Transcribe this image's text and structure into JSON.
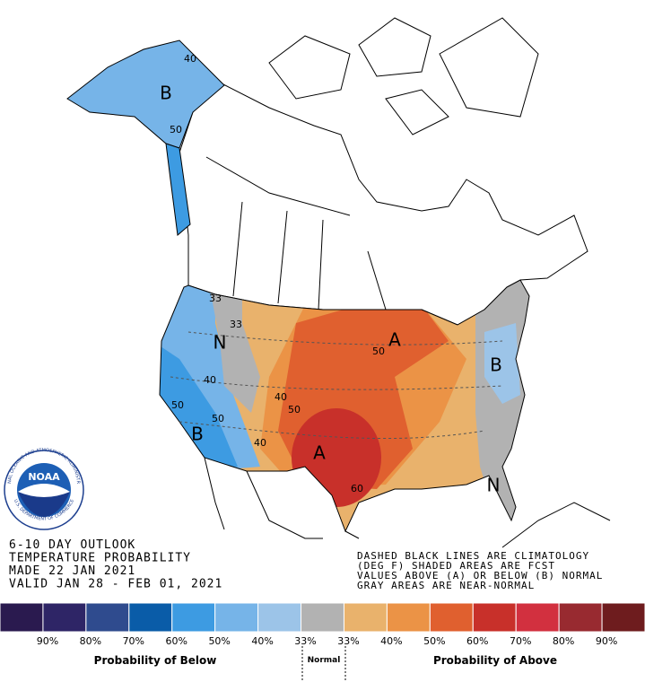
{
  "title_block": {
    "lines": [
      "6-10 DAY OUTLOOK",
      "TEMPERATURE PROBABILITY",
      "MADE  22 JAN 2021",
      "VALID  JAN 28 - FEB 01, 2021"
    ]
  },
  "notes": {
    "lines": [
      "DASHED BLACK LINES ARE CLIMATOLOGY",
      "(DEG F) SHADED AREAS ARE FCST",
      "VALUES ABOVE (A) OR BELOW (B) NORMAL",
      "GRAY AREAS ARE NEAR-NORMAL"
    ]
  },
  "map": {
    "labels": [
      "B",
      "40",
      "50",
      "33",
      "33",
      "N",
      "40",
      "50",
      "50",
      "B",
      "40",
      "50",
      "A",
      "A",
      "B",
      "N",
      "60",
      "50",
      "40"
    ]
  },
  "logo": {
    "name": "NOAA",
    "ring_top": "NATIONAL OCEANIC AND ATMOSPHERIC ADMINISTRATION",
    "ring_bottom": "U.S. DEPARTMENT OF COMMERCE"
  },
  "legend": {
    "colors": [
      "#2a1a4f",
      "#2e2566",
      "#2f4b8e",
      "#0a5ca8",
      "#3d9be2",
      "#76b4e8",
      "#9cc4e8",
      "#b2b2b2",
      "#e9b26c",
      "#eb9346",
      "#e0602f",
      "#c8302a",
      "#d2303f",
      "#982a30",
      "#6e1c1e"
    ],
    "ticks": [
      "90%",
      "80%",
      "70%",
      "60%",
      "50%",
      "40%",
      "33%",
      "33%",
      "40%",
      "50%",
      "60%",
      "70%",
      "80%",
      "90%"
    ],
    "below": "Probability of Below",
    "normal": "Normal",
    "above": "Probability of Above"
  }
}
